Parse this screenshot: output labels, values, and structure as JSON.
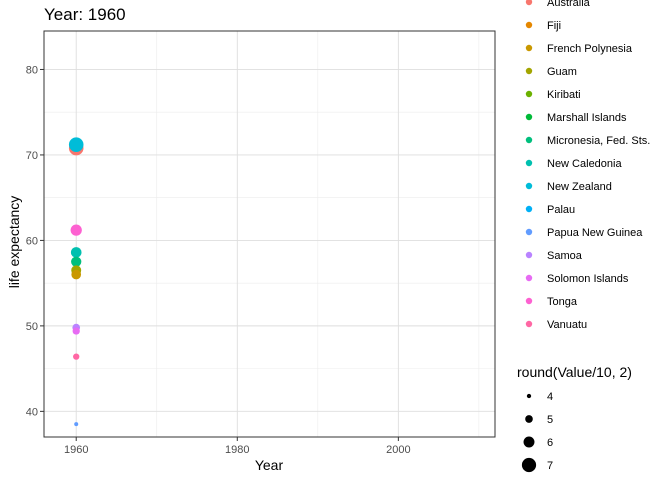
{
  "chart_data": {
    "type": "scatter",
    "title": "Year: 1960",
    "xlabel": "Year",
    "ylabel": "life expectancy",
    "xlim": [
      1956,
      2012
    ],
    "ylim": [
      37,
      84.5
    ],
    "x_ticks": [
      1960,
      1980,
      2000
    ],
    "y_ticks": [
      40,
      50,
      60,
      70,
      80
    ],
    "grid": true,
    "legend_position": "right",
    "color_legend": [
      {
        "name": "Australia",
        "color": "#F8766D"
      },
      {
        "name": "Fiji",
        "color": "#E58700"
      },
      {
        "name": "French Polynesia",
        "color": "#C99800"
      },
      {
        "name": "Guam",
        "color": "#A3A500"
      },
      {
        "name": "Kiribati",
        "color": "#6BB100"
      },
      {
        "name": "Marshall Islands",
        "color": "#00BA38"
      },
      {
        "name": "Micronesia, Fed. Sts.",
        "color": "#00BF7D"
      },
      {
        "name": "New Caledonia",
        "color": "#00C0AF"
      },
      {
        "name": "New Zealand",
        "color": "#00BCD8"
      },
      {
        "name": "Palau",
        "color": "#00B0F6"
      },
      {
        "name": "Papua New Guinea",
        "color": "#619CFF"
      },
      {
        "name": "Samoa",
        "color": "#B983FF"
      },
      {
        "name": "Solomon Islands",
        "color": "#E76BF3"
      },
      {
        "name": "Tonga",
        "color": "#FD61D1"
      },
      {
        "name": "Vanuatu",
        "color": "#FF67A4"
      }
    ],
    "size_legend": {
      "title": "round(Value/10, 2)",
      "values": [
        4,
        5,
        6,
        7
      ]
    },
    "points": [
      {
        "country": "Australia",
        "x": 1960,
        "y": 70.8,
        "size": 7.1
      },
      {
        "country": "New Zealand",
        "x": 1960,
        "y": 71.2,
        "size": 7.1
      },
      {
        "country": "Tonga",
        "x": 1960,
        "y": 61.2,
        "size": 6.1
      },
      {
        "country": "New Caledonia",
        "x": 1960,
        "y": 58.6,
        "size": 5.9
      },
      {
        "country": "Micronesia, Fed. Sts.",
        "x": 1960,
        "y": 57.5,
        "size": 5.8
      },
      {
        "country": "Guam",
        "x": 1960,
        "y": 56.5,
        "size": 5.7
      },
      {
        "country": "French Polynesia",
        "x": 1960,
        "y": 56.0,
        "size": 5.6
      },
      {
        "country": "Samoa",
        "x": 1960,
        "y": 49.8,
        "size": 5.0
      },
      {
        "country": "Solomon Islands",
        "x": 1960,
        "y": 49.4,
        "size": 4.9
      },
      {
        "country": "Vanuatu",
        "x": 1960,
        "y": 46.4,
        "size": 4.6
      },
      {
        "country": "Papua New Guinea",
        "x": 1960,
        "y": 38.5,
        "size": 3.9
      }
    ]
  }
}
